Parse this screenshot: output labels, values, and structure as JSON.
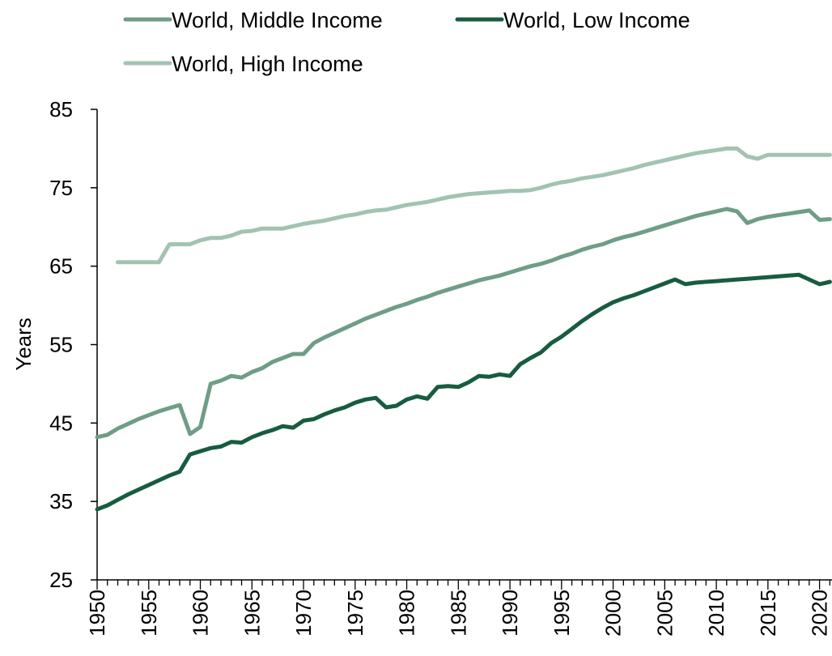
{
  "chart_data": {
    "type": "line",
    "title": "",
    "xlabel": "",
    "ylabel": "Years",
    "ylim": [
      25,
      85
    ],
    "xlim": [
      1950,
      2021
    ],
    "y_ticks": [
      "25",
      "35",
      "45",
      "55",
      "65",
      "75",
      "85"
    ],
    "x_tick_labels": [
      "1950",
      "1955",
      "1960",
      "1965",
      "1970",
      "1975",
      "1980",
      "1985",
      "1990",
      "1995",
      "2000",
      "2005",
      "2010",
      "2015",
      "2020"
    ],
    "grid": false,
    "legend_position": "top",
    "x": [
      1950,
      1951,
      1952,
      1953,
      1954,
      1955,
      1956,
      1957,
      1958,
      1959,
      1960,
      1961,
      1962,
      1963,
      1964,
      1965,
      1966,
      1967,
      1968,
      1969,
      1970,
      1971,
      1972,
      1973,
      1974,
      1975,
      1976,
      1977,
      1978,
      1979,
      1980,
      1981,
      1982,
      1983,
      1984,
      1985,
      1986,
      1987,
      1988,
      1989,
      1990,
      1991,
      1992,
      1993,
      1994,
      1995,
      1996,
      1997,
      1998,
      1999,
      2000,
      2001,
      2002,
      2003,
      2004,
      2005,
      2006,
      2007,
      2008,
      2009,
      2010,
      2011,
      2012,
      2013,
      2014,
      2015,
      2016,
      2017,
      2018,
      2019,
      2020,
      2021
    ],
    "series": [
      {
        "name": "World, Middle Income",
        "color": "#6f9d87",
        "values": [
          43.2,
          43.5,
          44.3,
          44.9,
          45.5,
          46.0,
          46.5,
          46.9,
          47.3,
          43.6,
          44.5,
          50.0,
          50.4,
          51.0,
          50.8,
          51.5,
          52.0,
          52.8,
          53.3,
          53.8,
          53.8,
          55.2,
          55.9,
          56.5,
          57.1,
          57.7,
          58.3,
          58.8,
          59.3,
          59.8,
          60.2,
          60.7,
          61.1,
          61.6,
          62.0,
          62.4,
          62.8,
          63.2,
          63.5,
          63.8,
          64.2,
          64.6,
          65.0,
          65.3,
          65.7,
          66.2,
          66.6,
          67.1,
          67.5,
          67.8,
          68.3,
          68.7,
          69.0,
          69.4,
          69.8,
          70.2,
          70.6,
          71.0,
          71.4,
          71.7,
          72.0,
          72.3,
          72.0,
          70.5,
          71.0,
          71.3,
          71.5,
          71.7,
          71.9,
          72.1,
          70.9,
          71.0
        ]
      },
      {
        "name": "World, Low Income",
        "color": "#175c40",
        "values": [
          34.0,
          34.5,
          35.2,
          35.9,
          36.5,
          37.1,
          37.7,
          38.3,
          38.8,
          41.0,
          41.4,
          41.8,
          42.0,
          42.6,
          42.5,
          43.2,
          43.7,
          44.1,
          44.6,
          44.4,
          45.3,
          45.5,
          46.1,
          46.6,
          47.0,
          47.6,
          48.0,
          48.2,
          47.0,
          47.2,
          48.0,
          48.4,
          48.1,
          49.6,
          49.7,
          49.6,
          50.2,
          51.0,
          50.9,
          51.2,
          51.0,
          52.5,
          53.3,
          54.0,
          55.2,
          56.0,
          57.0,
          58.0,
          58.9,
          59.7,
          60.4,
          60.9,
          61.3,
          61.8,
          62.3,
          62.8,
          63.3,
          62.7,
          62.9,
          63.0,
          63.1,
          63.2,
          63.3,
          63.4,
          63.5,
          63.6,
          63.7,
          63.8,
          63.9,
          63.3,
          62.7,
          63.0
        ]
      },
      {
        "name": "World, High Income",
        "color": "#a3c3b2",
        "values": [
          null,
          null,
          65.5,
          65.5,
          65.5,
          65.5,
          65.5,
          67.8,
          67.8,
          67.8,
          68.3,
          68.6,
          68.6,
          68.9,
          69.4,
          69.5,
          69.8,
          69.8,
          69.8,
          70.1,
          70.4,
          70.6,
          70.8,
          71.1,
          71.4,
          71.6,
          71.9,
          72.1,
          72.2,
          72.5,
          72.8,
          73.0,
          73.2,
          73.5,
          73.8,
          74.0,
          74.2,
          74.3,
          74.4,
          74.5,
          74.6,
          74.6,
          74.7,
          75.0,
          75.4,
          75.7,
          75.9,
          76.2,
          76.4,
          76.6,
          76.9,
          77.2,
          77.5,
          77.9,
          78.2,
          78.5,
          78.8,
          79.1,
          79.4,
          79.6,
          79.8,
          80.0,
          80.0,
          79.0,
          78.7,
          79.2,
          79.2,
          79.2,
          79.2,
          79.2,
          79.2,
          79.2
        ]
      }
    ]
  }
}
